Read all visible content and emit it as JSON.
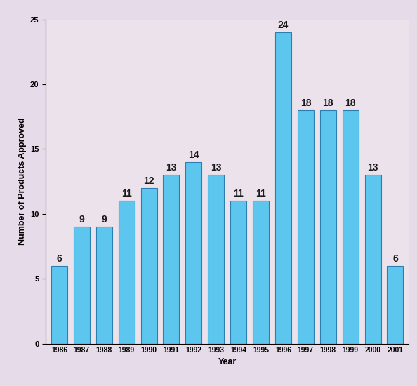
{
  "chart_data": {
    "type": "bar",
    "x_label": "Year",
    "y_label": "Number of Products Approved",
    "categories": [
      "1986",
      "1987",
      "1988",
      "1989",
      "1990",
      "1991",
      "1992",
      "1993",
      "1994",
      "1995",
      "1996",
      "1997",
      "1998",
      "1999",
      "2000",
      "2001"
    ],
    "values": [
      6,
      9,
      9,
      11,
      12,
      13,
      14,
      13,
      11,
      11,
      24,
      18,
      18,
      18,
      13,
      6
    ],
    "color": "#5cc6ee",
    "ylim": [
      0,
      25
    ],
    "yticks": [
      0,
      5,
      10,
      15,
      20,
      25
    ],
    "grid": false,
    "data_labels": true
  }
}
